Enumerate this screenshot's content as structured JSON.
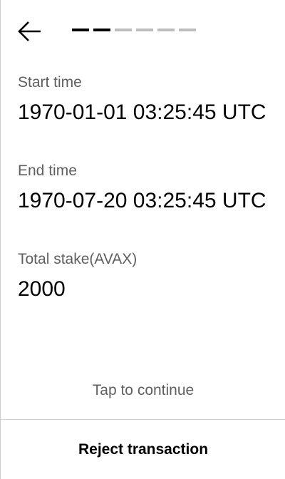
{
  "header": {
    "back_icon": "arrow-left-icon",
    "progress": {
      "total_steps": 6,
      "current_step": 2
    }
  },
  "fields": [
    {
      "label": "Start time",
      "value": "1970-01-01 03:25:45 UTC"
    },
    {
      "label": "End time",
      "value": "1970-07-20 03:25:45 UTC"
    },
    {
      "label": "Total stake(AVAX)",
      "value": "2000"
    }
  ],
  "footer": {
    "tap_hint": "Tap to continue",
    "reject_label": "Reject transaction"
  },
  "colors": {
    "text_primary": "#000000",
    "text_secondary": "#5f5f5f",
    "progress_inactive": "#bdbdbd",
    "divider": "#cfcfcf"
  }
}
